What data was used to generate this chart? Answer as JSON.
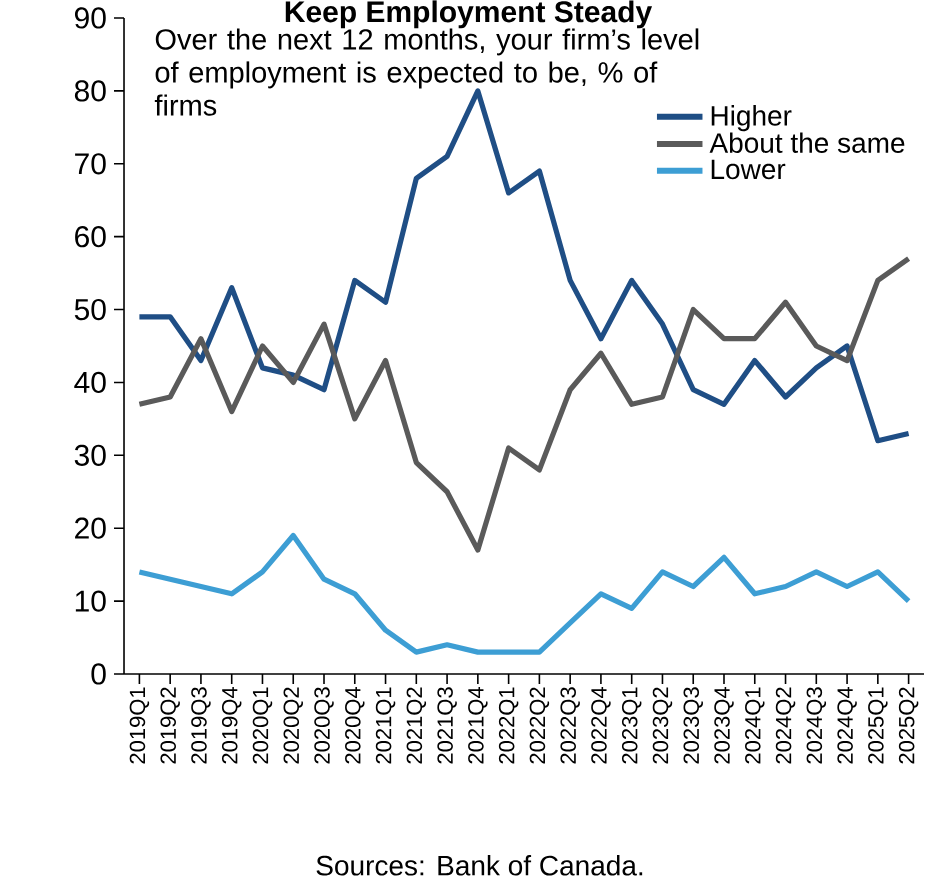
{
  "chart_data": {
    "type": "line",
    "title": "Keep Employment Steady",
    "subtitle": "Over the next 12 months, your firm’s level of employment is expected to be, % of firms",
    "categories": [
      "2019Q1",
      "2019Q2",
      "2019Q3",
      "2019Q4",
      "2020Q1",
      "2020Q2",
      "2020Q3",
      "2020Q4",
      "2021Q1",
      "2021Q2",
      "2021Q3",
      "2021Q4",
      "2022Q1",
      "2022Q2",
      "2022Q3",
      "2022Q4",
      "2023Q1",
      "2023Q2",
      "2023Q3",
      "2023Q4",
      "2024Q1",
      "2024Q2",
      "2024Q3",
      "2024Q4",
      "2025Q1",
      "2025Q2"
    ],
    "series": [
      {
        "name": "Higher",
        "color": "#1f4e85",
        "values": [
          49,
          49,
          43,
          53,
          42,
          41,
          39,
          54,
          51,
          68,
          71,
          80,
          66,
          69,
          54,
          46,
          54,
          48,
          39,
          37,
          43,
          38,
          42,
          45,
          32,
          33
        ]
      },
      {
        "name": "About the same",
        "color": "#5a5a5a",
        "values": [
          37,
          38,
          46,
          36,
          45,
          40,
          48,
          35,
          43,
          29,
          25,
          17,
          31,
          28,
          39,
          44,
          37,
          38,
          50,
          46,
          46,
          51,
          45,
          43,
          54,
          57
        ]
      },
      {
        "name": "Lower",
        "color": "#3d9ed4",
        "values": [
          14,
          13,
          12,
          11,
          14,
          19,
          13,
          11,
          6,
          3,
          4,
          3,
          3,
          3,
          7,
          11,
          9,
          14,
          12,
          16,
          11,
          12,
          14,
          12,
          14,
          10
        ]
      }
    ],
    "ylim": [
      0,
      90
    ],
    "yticks": [
      0,
      10,
      20,
      30,
      40,
      50,
      60,
      70,
      80,
      90
    ],
    "grid": false,
    "legend": "top right",
    "marker": "none",
    "line_style": "solid",
    "annotations": [
      "Sources: Bank of Canada."
    ]
  }
}
